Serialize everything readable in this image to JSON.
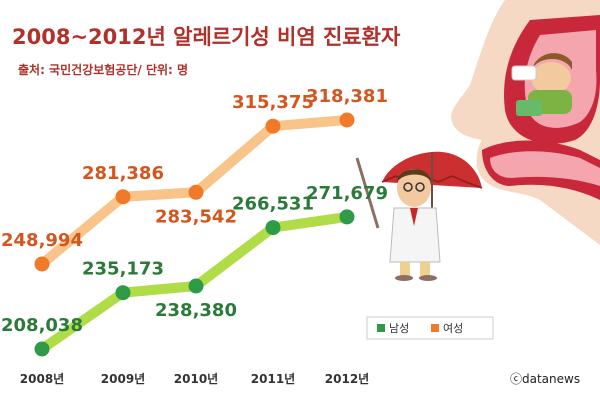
{
  "chart_data": {
    "type": "line",
    "title": "2008~2012년 알레르기성 비염 진료환자",
    "subtitle": "출처: 국민건강보험공단/ 단위: 명",
    "categories": [
      "2008년",
      "2009년",
      "2010년",
      "2011년",
      "2012년"
    ],
    "series": [
      {
        "name": "남성",
        "values": [
          208038,
          235173,
          238380,
          266531,
          271679
        ],
        "value_labels": [
          "208,038",
          "235,173",
          "238,380",
          "266,531",
          "271,679"
        ]
      },
      {
        "name": "여성",
        "values": [
          248994,
          281386,
          283542,
          315375,
          318381
        ],
        "value_labels": [
          "248,994",
          "281,386",
          "283,542",
          "315,375",
          "318,381"
        ]
      }
    ],
    "legend_position": "bottom-right",
    "grid": false,
    "credit": "ⓒdatanews"
  },
  "colors": {
    "female_line": "#f8c489",
    "female_marker": "#ef7a2a",
    "female_label": "#d4561e",
    "male_line": "#b0dc48",
    "male_marker": "#2f9a48",
    "male_label": "#2c7a3a",
    "title": "#b0312a"
  },
  "illustration": {
    "icons": [
      "nose-cross-section-icon",
      "sneezing-man-icon",
      "doctor-with-umbrella-icon"
    ]
  }
}
